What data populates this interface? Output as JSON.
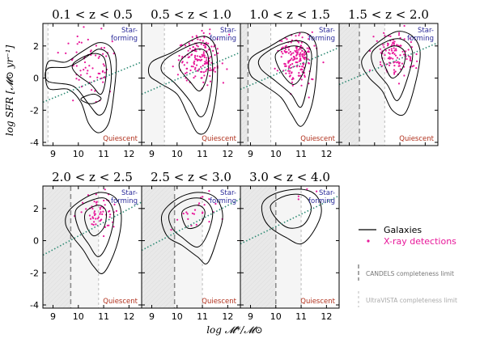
{
  "figure": {
    "ylabel": "log SFR [𝓜⊙ yr⁻¹]",
    "xlabel": "log 𝓜*/𝓜⊙"
  },
  "colors": {
    "contour": "#000000",
    "xray": "#e8189a",
    "ms_line": "#2e8b74",
    "starforming_label": "#2b2b9a",
    "quiescent_label": "#b0301c",
    "shade": "#e9e9e9",
    "shade_light": "#f5f5f5",
    "candels_line": "#888888",
    "ultravista_line": "#bbbbbb"
  },
  "legend": {
    "galaxies": "Galaxies",
    "xray": "X-ray detections",
    "candels_limit": "CANDELS completeness limit",
    "ultravista_limit": "UltraVISTA completeness limit"
  },
  "chart_data": [
    {
      "type": "scatter",
      "title": "0.1 < z < 0.5",
      "xlim": [
        8.6,
        12.5
      ],
      "ylim": [
        -4.2,
        3.4
      ],
      "xticks": [
        9,
        10,
        11,
        12
      ],
      "yticks": [
        -4,
        -2,
        0,
        2
      ],
      "starforming_label": "Star-forming",
      "quiescent_label": "Quiescent",
      "candels_limit": null,
      "ultravista_limit": 8.8,
      "ms_line": [
        [
          8.6,
          -1.5
        ],
        [
          12.5,
          1.0
        ]
      ],
      "xray_center": [
        10.6,
        0.8
      ],
      "xray_spread": [
        0.45,
        1.1
      ],
      "xray_count": 70,
      "contours": [
        [
          [
            8.8,
            1.0
          ],
          [
            9.5,
            1.0
          ],
          [
            10.1,
            1.6
          ],
          [
            10.8,
            2.2
          ],
          [
            11.3,
            1.9
          ],
          [
            11.5,
            1.0
          ],
          [
            11.4,
            -1.0
          ],
          [
            11.2,
            -2.8
          ],
          [
            10.8,
            -3.4
          ],
          [
            10.4,
            -2.8
          ],
          [
            10.1,
            -1.5
          ],
          [
            9.6,
            -0.7
          ],
          [
            8.8,
            -0.6
          ]
        ],
        [
          [
            8.8,
            0.6
          ],
          [
            9.6,
            0.7
          ],
          [
            10.3,
            1.3
          ],
          [
            10.8,
            1.8
          ],
          [
            11.2,
            1.4
          ],
          [
            11.3,
            0.0
          ],
          [
            11.1,
            -1.8
          ],
          [
            10.8,
            -2.3
          ],
          [
            10.4,
            -1.6
          ],
          [
            9.8,
            -0.5
          ],
          [
            8.8,
            -0.2
          ]
        ],
        [
          [
            9.8,
            0.9
          ],
          [
            10.5,
            1.5
          ],
          [
            11.0,
            1.3
          ],
          [
            11.1,
            0.2
          ],
          [
            10.9,
            -1.0
          ],
          [
            10.5,
            -0.4
          ],
          [
            9.9,
            0.3
          ]
        ],
        [
          [
            10.1,
            -1.3
          ],
          [
            10.6,
            -1.0
          ],
          [
            10.9,
            -1.3
          ],
          [
            10.5,
            -1.6
          ]
        ]
      ]
    },
    {
      "type": "scatter",
      "title": "0.5 < z < 1.0",
      "xlim": [
        8.6,
        12.5
      ],
      "ylim": [
        -4.2,
        3.4
      ],
      "xticks": [
        9,
        10,
        11,
        12
      ],
      "yticks": [
        -4,
        -2,
        0,
        2
      ],
      "starforming_label": "Star-forming",
      "quiescent_label": "Quiescent",
      "candels_limit": null,
      "ultravista_limit": 9.5,
      "ms_line": [
        [
          8.6,
          -1.0
        ],
        [
          12.5,
          1.6
        ]
      ],
      "xray_center": [
        10.9,
        1.2
      ],
      "xray_spread": [
        0.4,
        0.8
      ],
      "xray_count": 160,
      "contours": [
        [
          [
            9.0,
            1.0
          ],
          [
            9.8,
            1.6
          ],
          [
            10.5,
            2.3
          ],
          [
            11.1,
            2.6
          ],
          [
            11.5,
            2.0
          ],
          [
            11.6,
            0.5
          ],
          [
            11.5,
            -1.5
          ],
          [
            11.2,
            -3.2
          ],
          [
            10.8,
            -3.4
          ],
          [
            10.4,
            -2.2
          ],
          [
            10.0,
            -1.0
          ],
          [
            9.3,
            -0.3
          ],
          [
            8.9,
            0.2
          ]
        ],
        [
          [
            9.5,
            1.1
          ],
          [
            10.2,
            1.8
          ],
          [
            10.9,
            2.2
          ],
          [
            11.3,
            1.8
          ],
          [
            11.4,
            0.2
          ],
          [
            11.2,
            -1.8
          ],
          [
            10.9,
            -2.4
          ],
          [
            10.5,
            -1.4
          ],
          [
            9.9,
            -0.3
          ],
          [
            9.4,
            0.4
          ]
        ],
        [
          [
            10.2,
            1.2
          ],
          [
            10.8,
            1.8
          ],
          [
            11.2,
            1.5
          ],
          [
            11.2,
            0.2
          ],
          [
            10.9,
            -0.8
          ],
          [
            10.5,
            -0.2
          ],
          [
            10.1,
            0.6
          ]
        ]
      ]
    },
    {
      "type": "scatter",
      "title": "1.0 < z < 1.5",
      "xlim": [
        8.6,
        12.5
      ],
      "ylim": [
        -4.2,
        3.4
      ],
      "xticks": [
        9,
        10,
        11,
        12
      ],
      "yticks": [
        -4,
        -2,
        0,
        2
      ],
      "starforming_label": "Star-forming",
      "quiescent_label": "Quiescent",
      "candels_limit": 8.9,
      "ultravista_limit": 9.8,
      "ms_line": [
        [
          8.6,
          -0.7
        ],
        [
          12.5,
          1.9
        ]
      ],
      "xray_center": [
        10.8,
        1.3
      ],
      "xray_spread": [
        0.4,
        0.8
      ],
      "xray_count": 170,
      "contours": [
        [
          [
            9.0,
            1.2
          ],
          [
            9.8,
            2.0
          ],
          [
            10.6,
            2.7
          ],
          [
            11.2,
            2.8
          ],
          [
            11.6,
            2.0
          ],
          [
            11.6,
            0.2
          ],
          [
            11.4,
            -1.8
          ],
          [
            11.0,
            -3.0
          ],
          [
            10.6,
            -2.2
          ],
          [
            10.2,
            -1.2
          ],
          [
            9.5,
            -0.4
          ],
          [
            9.0,
            0.2
          ]
        ],
        [
          [
            9.4,
            1.3
          ],
          [
            10.2,
            2.1
          ],
          [
            11.0,
            2.3
          ],
          [
            11.4,
            1.6
          ],
          [
            11.3,
            0.0
          ],
          [
            11.0,
            -1.8
          ],
          [
            10.6,
            -1.0
          ],
          [
            10.0,
            -0.2
          ],
          [
            9.4,
            0.6
          ]
        ],
        [
          [
            10.0,
            1.5
          ],
          [
            10.7,
            2.0
          ],
          [
            11.2,
            1.6
          ],
          [
            11.1,
            0.4
          ],
          [
            10.7,
            -0.4
          ],
          [
            10.2,
            0.4
          ]
        ]
      ]
    },
    {
      "type": "scatter",
      "title": "1.5 < z < 2.0",
      "xlim": [
        8.6,
        12.5
      ],
      "ylim": [
        -4.2,
        3.4
      ],
      "xticks": [
        9,
        10,
        11,
        12
      ],
      "yticks": [
        -4,
        -2,
        0,
        2
      ],
      "starforming_label": "Star-forming",
      "quiescent_label": "Quiescent",
      "candels_limit": 9.4,
      "ultravista_limit": 10.4,
      "ms_line": [
        [
          8.6,
          -0.4
        ],
        [
          12.5,
          2.2
        ]
      ],
      "xray_center": [
        10.8,
        1.5
      ],
      "xray_spread": [
        0.4,
        0.7
      ],
      "xray_count": 110,
      "contours": [
        [
          [
            9.6,
            1.4
          ],
          [
            10.2,
            2.3
          ],
          [
            10.9,
            2.9
          ],
          [
            11.5,
            2.6
          ],
          [
            11.8,
            1.6
          ],
          [
            11.6,
            -0.4
          ],
          [
            11.2,
            -2.2
          ],
          [
            10.7,
            -2.0
          ],
          [
            10.3,
            -0.8
          ],
          [
            9.8,
            0.0
          ],
          [
            9.5,
            0.8
          ]
        ],
        [
          [
            9.9,
            1.6
          ],
          [
            10.5,
            2.3
          ],
          [
            11.1,
            2.4
          ],
          [
            11.5,
            1.6
          ],
          [
            11.3,
            0.0
          ],
          [
            10.9,
            -1.4
          ],
          [
            10.5,
            -0.4
          ],
          [
            10.0,
            0.6
          ]
        ],
        [
          [
            10.3,
            1.6
          ],
          [
            10.8,
            2.0
          ],
          [
            11.2,
            1.6
          ],
          [
            11.1,
            0.6
          ],
          [
            10.7,
            0.0
          ],
          [
            10.4,
            0.8
          ]
        ]
      ]
    },
    {
      "type": "scatter",
      "title": "2.0 < z < 2.5",
      "xlim": [
        8.6,
        12.5
      ],
      "ylim": [
        -4.2,
        3.4
      ],
      "xticks": [
        9,
        10,
        11,
        12
      ],
      "yticks": [
        -4,
        -2,
        0,
        2
      ],
      "starforming_label": "Star-forming",
      "quiescent_label": "Quiescent",
      "candels_limit": 9.7,
      "ultravista_limit": 10.8,
      "ms_line": [
        [
          8.6,
          -0.9
        ],
        [
          12.5,
          2.4
        ]
      ],
      "xray_center": [
        10.8,
        1.8
      ],
      "xray_spread": [
        0.35,
        0.6
      ],
      "xray_count": 60,
      "contours": [
        [
          [
            9.6,
            1.8
          ],
          [
            10.2,
            2.6
          ],
          [
            10.9,
            3.0
          ],
          [
            11.5,
            2.6
          ],
          [
            11.7,
            1.4
          ],
          [
            11.5,
            -0.4
          ],
          [
            11.0,
            -2.0
          ],
          [
            10.6,
            -1.6
          ],
          [
            10.2,
            -0.6
          ],
          [
            9.8,
            0.2
          ],
          [
            9.5,
            1.0
          ]
        ],
        [
          [
            9.9,
            1.9
          ],
          [
            10.5,
            2.5
          ],
          [
            11.1,
            2.6
          ],
          [
            11.4,
            1.6
          ],
          [
            11.2,
            0.0
          ],
          [
            10.8,
            -1.0
          ],
          [
            10.4,
            -0.2
          ],
          [
            10.0,
            0.8
          ]
        ],
        [
          [
            10.3,
            1.8
          ],
          [
            10.8,
            2.2
          ],
          [
            11.1,
            1.8
          ],
          [
            11.0,
            0.8
          ],
          [
            10.6,
            0.3
          ],
          [
            10.3,
            1.0
          ]
        ]
      ]
    },
    {
      "type": "scatter",
      "title": "2.5 < z < 3.0",
      "xlim": [
        8.6,
        12.5
      ],
      "ylim": [
        -4.2,
        3.4
      ],
      "xticks": [
        9,
        10,
        11,
        12
      ],
      "yticks": [
        -4,
        -2,
        0,
        2
      ],
      "starforming_label": "Star-forming",
      "quiescent_label": "Quiescent",
      "candels_limit": 9.9,
      "ultravista_limit": 11.0,
      "ms_line": [
        [
          8.6,
          -0.6
        ],
        [
          12.5,
          2.6
        ]
      ],
      "xray_center": [
        10.9,
        1.6
      ],
      "xray_spread": [
        0.4,
        0.6
      ],
      "xray_count": 25,
      "contours": [
        [
          [
            9.4,
            1.6
          ],
          [
            10.0,
            2.6
          ],
          [
            10.8,
            3.0
          ],
          [
            11.5,
            2.7
          ],
          [
            11.8,
            1.6
          ],
          [
            11.6,
            0.2
          ],
          [
            11.2,
            -1.4
          ],
          [
            10.8,
            -1.0
          ],
          [
            10.2,
            -0.3
          ],
          [
            9.6,
            0.3
          ]
        ],
        [
          [
            9.7,
            1.7
          ],
          [
            10.3,
            2.5
          ],
          [
            11.0,
            2.6
          ],
          [
            11.4,
            1.8
          ],
          [
            11.2,
            0.4
          ],
          [
            10.8,
            -0.4
          ],
          [
            10.2,
            0.2
          ],
          [
            9.8,
            0.8
          ]
        ],
        [
          [
            10.2,
            1.8
          ],
          [
            10.8,
            2.2
          ],
          [
            11.1,
            1.8
          ],
          [
            10.9,
            1.0
          ],
          [
            10.4,
            0.8
          ]
        ]
      ]
    },
    {
      "type": "scatter",
      "title": "3.0 < z < 4.0",
      "xlim": [
        8.6,
        12.5
      ],
      "ylim": [
        -4.2,
        3.4
      ],
      "xticks": [
        9,
        10,
        11,
        12
      ],
      "yticks": [
        -4,
        -2,
        0,
        2
      ],
      "starforming_label": "Star-forming",
      "quiescent_label": "Quiescent",
      "candels_limit": 10.0,
      "ultravista_limit": 11.0,
      "ms_line": [
        [
          8.6,
          -0.2
        ],
        [
          12.5,
          2.8
        ]
      ],
      "xray_center": [
        11.1,
        2.6
      ],
      "xray_spread": [
        0.25,
        0.3
      ],
      "xray_count": 4,
      "contours": [
        [
          [
            9.5,
            2.4
          ],
          [
            10.1,
            3.0
          ],
          [
            11.0,
            3.2
          ],
          [
            11.6,
            2.8
          ],
          [
            11.8,
            1.8
          ],
          [
            11.5,
            0.6
          ],
          [
            11.0,
            -0.2
          ],
          [
            10.4,
            0.2
          ],
          [
            9.8,
            0.8
          ],
          [
            9.5,
            1.5
          ]
        ],
        [
          [
            9.8,
            2.2
          ],
          [
            10.4,
            2.8
          ],
          [
            11.1,
            2.8
          ],
          [
            11.4,
            2.0
          ],
          [
            11.1,
            1.0
          ],
          [
            10.5,
            0.8
          ],
          [
            10.0,
            1.4
          ]
        ]
      ]
    }
  ]
}
